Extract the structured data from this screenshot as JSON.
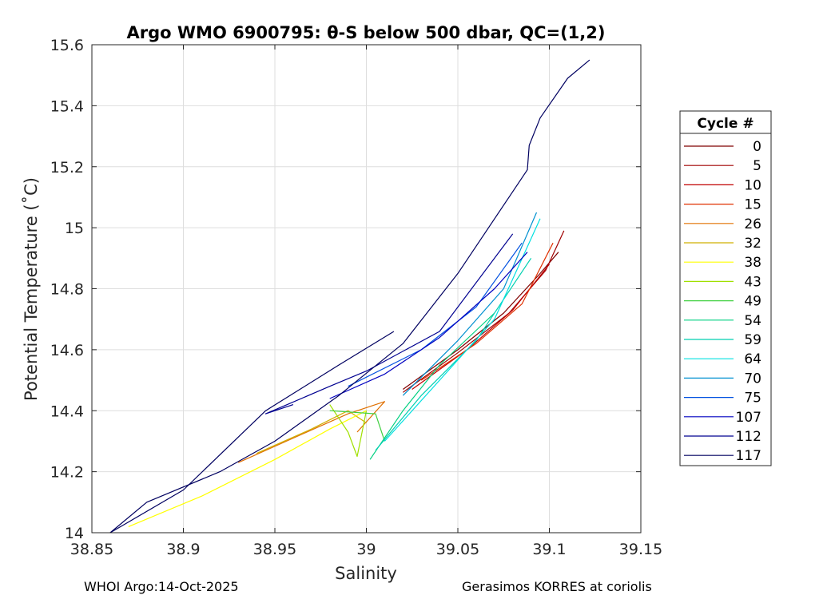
{
  "chart_data": {
    "type": "line",
    "title": "Argo WMO 6900795: θ-S below 500 dbar,  QC=(1,2)",
    "xlabel": "Salinity",
    "ylabel": "Potential Temperature (˚C)",
    "xlim": [
      38.85,
      39.15
    ],
    "ylim": [
      14.0,
      15.6
    ],
    "xticks": [
      38.85,
      38.9,
      38.95,
      39.0,
      39.05,
      39.1,
      39.15
    ],
    "xtick_labels": [
      "38.85",
      "38.9",
      "38.95",
      "39",
      "39.05",
      "39.1",
      "39.15"
    ],
    "yticks": [
      14.0,
      14.2,
      14.4,
      14.6,
      14.8,
      15.0,
      15.2,
      15.4,
      15.6
    ],
    "ytick_labels": [
      "14",
      "14.2",
      "14.4",
      "14.6",
      "14.8",
      "15",
      "15.2",
      "15.4",
      "15.6"
    ],
    "grid": true,
    "legend_title": "Cycle #",
    "legend_position": "right-outside",
    "series": [
      {
        "name": "0",
        "color": "#800000",
        "points": [
          [
            39.02,
            14.47
          ],
          [
            39.05,
            14.6
          ],
          [
            39.075,
            14.72
          ],
          [
            39.095,
            14.85
          ],
          [
            39.105,
            14.92
          ]
        ]
      },
      {
        "name": "5",
        "color": "#a00000",
        "points": [
          [
            39.02,
            14.46
          ],
          [
            39.05,
            14.59
          ],
          [
            39.078,
            14.72
          ],
          [
            39.098,
            14.86
          ],
          [
            39.108,
            14.99
          ]
        ]
      },
      {
        "name": "10",
        "color": "#c00000",
        "points": [
          [
            39.025,
            14.47
          ],
          [
            39.055,
            14.6
          ],
          [
            39.08,
            14.73
          ],
          [
            39.1,
            14.88
          ]
        ]
      },
      {
        "name": "15",
        "color": "#e03000",
        "points": [
          [
            39.03,
            14.5
          ],
          [
            39.06,
            14.62
          ],
          [
            39.085,
            14.75
          ],
          [
            39.102,
            14.95
          ]
        ]
      },
      {
        "name": "26",
        "color": "#e07000",
        "points": [
          [
            38.93,
            14.23
          ],
          [
            38.96,
            14.31
          ],
          [
            38.99,
            14.39
          ],
          [
            39.01,
            14.43
          ],
          [
            38.995,
            14.33
          ]
        ]
      },
      {
        "name": "32",
        "color": "#d0b000",
        "points": [
          [
            38.94,
            14.26
          ],
          [
            38.97,
            14.34
          ],
          [
            38.99,
            14.4
          ],
          [
            39.0,
            14.36
          ]
        ]
      },
      {
        "name": "38",
        "color": "#ffff00",
        "points": [
          [
            38.87,
            14.02
          ],
          [
            38.91,
            14.12
          ],
          [
            38.95,
            14.24
          ],
          [
            38.98,
            14.34
          ],
          [
            39.0,
            14.4
          ]
        ]
      },
      {
        "name": "43",
        "color": "#a0e000",
        "points": [
          [
            38.98,
            14.42
          ],
          [
            38.99,
            14.33
          ],
          [
            38.995,
            14.25
          ],
          [
            39.0,
            14.4
          ]
        ]
      },
      {
        "name": "49",
        "color": "#40d040",
        "points": [
          [
            38.98,
            14.4
          ],
          [
            39.005,
            14.39
          ],
          [
            39.01,
            14.3
          ]
        ]
      },
      {
        "name": "54",
        "color": "#00d080",
        "points": [
          [
            39.002,
            14.24
          ],
          [
            39.02,
            14.4
          ],
          [
            39.04,
            14.55
          ],
          [
            39.07,
            14.72
          ]
        ]
      },
      {
        "name": "59",
        "color": "#00d0b0",
        "points": [
          [
            39.005,
            14.27
          ],
          [
            39.03,
            14.45
          ],
          [
            39.06,
            14.63
          ],
          [
            39.09,
            14.9
          ]
        ]
      },
      {
        "name": "64",
        "color": "#00e0e0",
        "points": [
          [
            39.01,
            14.3
          ],
          [
            39.04,
            14.5
          ],
          [
            39.07,
            14.7
          ],
          [
            39.095,
            15.03
          ]
        ]
      },
      {
        "name": "70",
        "color": "#0090d0",
        "points": [
          [
            39.02,
            14.45
          ],
          [
            39.05,
            14.63
          ],
          [
            39.075,
            14.8
          ],
          [
            39.093,
            15.05
          ]
        ]
      },
      {
        "name": "75",
        "color": "#0050e0",
        "points": [
          [
            38.99,
            14.48
          ],
          [
            39.03,
            14.6
          ],
          [
            39.06,
            14.74
          ],
          [
            39.085,
            14.95
          ]
        ]
      },
      {
        "name": "107",
        "color": "#0000c0",
        "points": [
          [
            38.98,
            14.44
          ],
          [
            39.01,
            14.52
          ],
          [
            39.04,
            14.64
          ],
          [
            39.07,
            14.8
          ],
          [
            39.088,
            14.92
          ]
        ]
      },
      {
        "name": "112",
        "color": "#000090",
        "points": [
          [
            38.96,
            14.42
          ],
          [
            38.945,
            14.39
          ],
          [
            38.98,
            14.48
          ],
          [
            39.0,
            14.53
          ],
          [
            39.04,
            14.66
          ],
          [
            39.08,
            14.98
          ]
        ]
      },
      {
        "name": "117",
        "color": "#000060",
        "points": [
          [
            38.86,
            14.0
          ],
          [
            38.88,
            14.1
          ],
          [
            38.92,
            14.2
          ],
          [
            38.95,
            14.3
          ],
          [
            38.985,
            14.45
          ],
          [
            39.02,
            14.62
          ],
          [
            39.05,
            14.85
          ],
          [
            39.088,
            15.19
          ],
          [
            39.089,
            15.27
          ],
          [
            39.095,
            15.36
          ],
          [
            39.11,
            15.49
          ],
          [
            39.122,
            15.55
          ]
        ]
      },
      {
        "name": "117",
        "color": "#000060",
        "points": [
          [
            38.86,
            14.0
          ],
          [
            38.9,
            14.14
          ],
          [
            38.945,
            14.4
          ],
          [
            38.985,
            14.55
          ],
          [
            39.015,
            14.66
          ]
        ]
      }
    ]
  },
  "footer": {
    "left": "WHOI Argo:14-Oct-2025",
    "right": "Gerasimos KORRES at coriolis"
  }
}
